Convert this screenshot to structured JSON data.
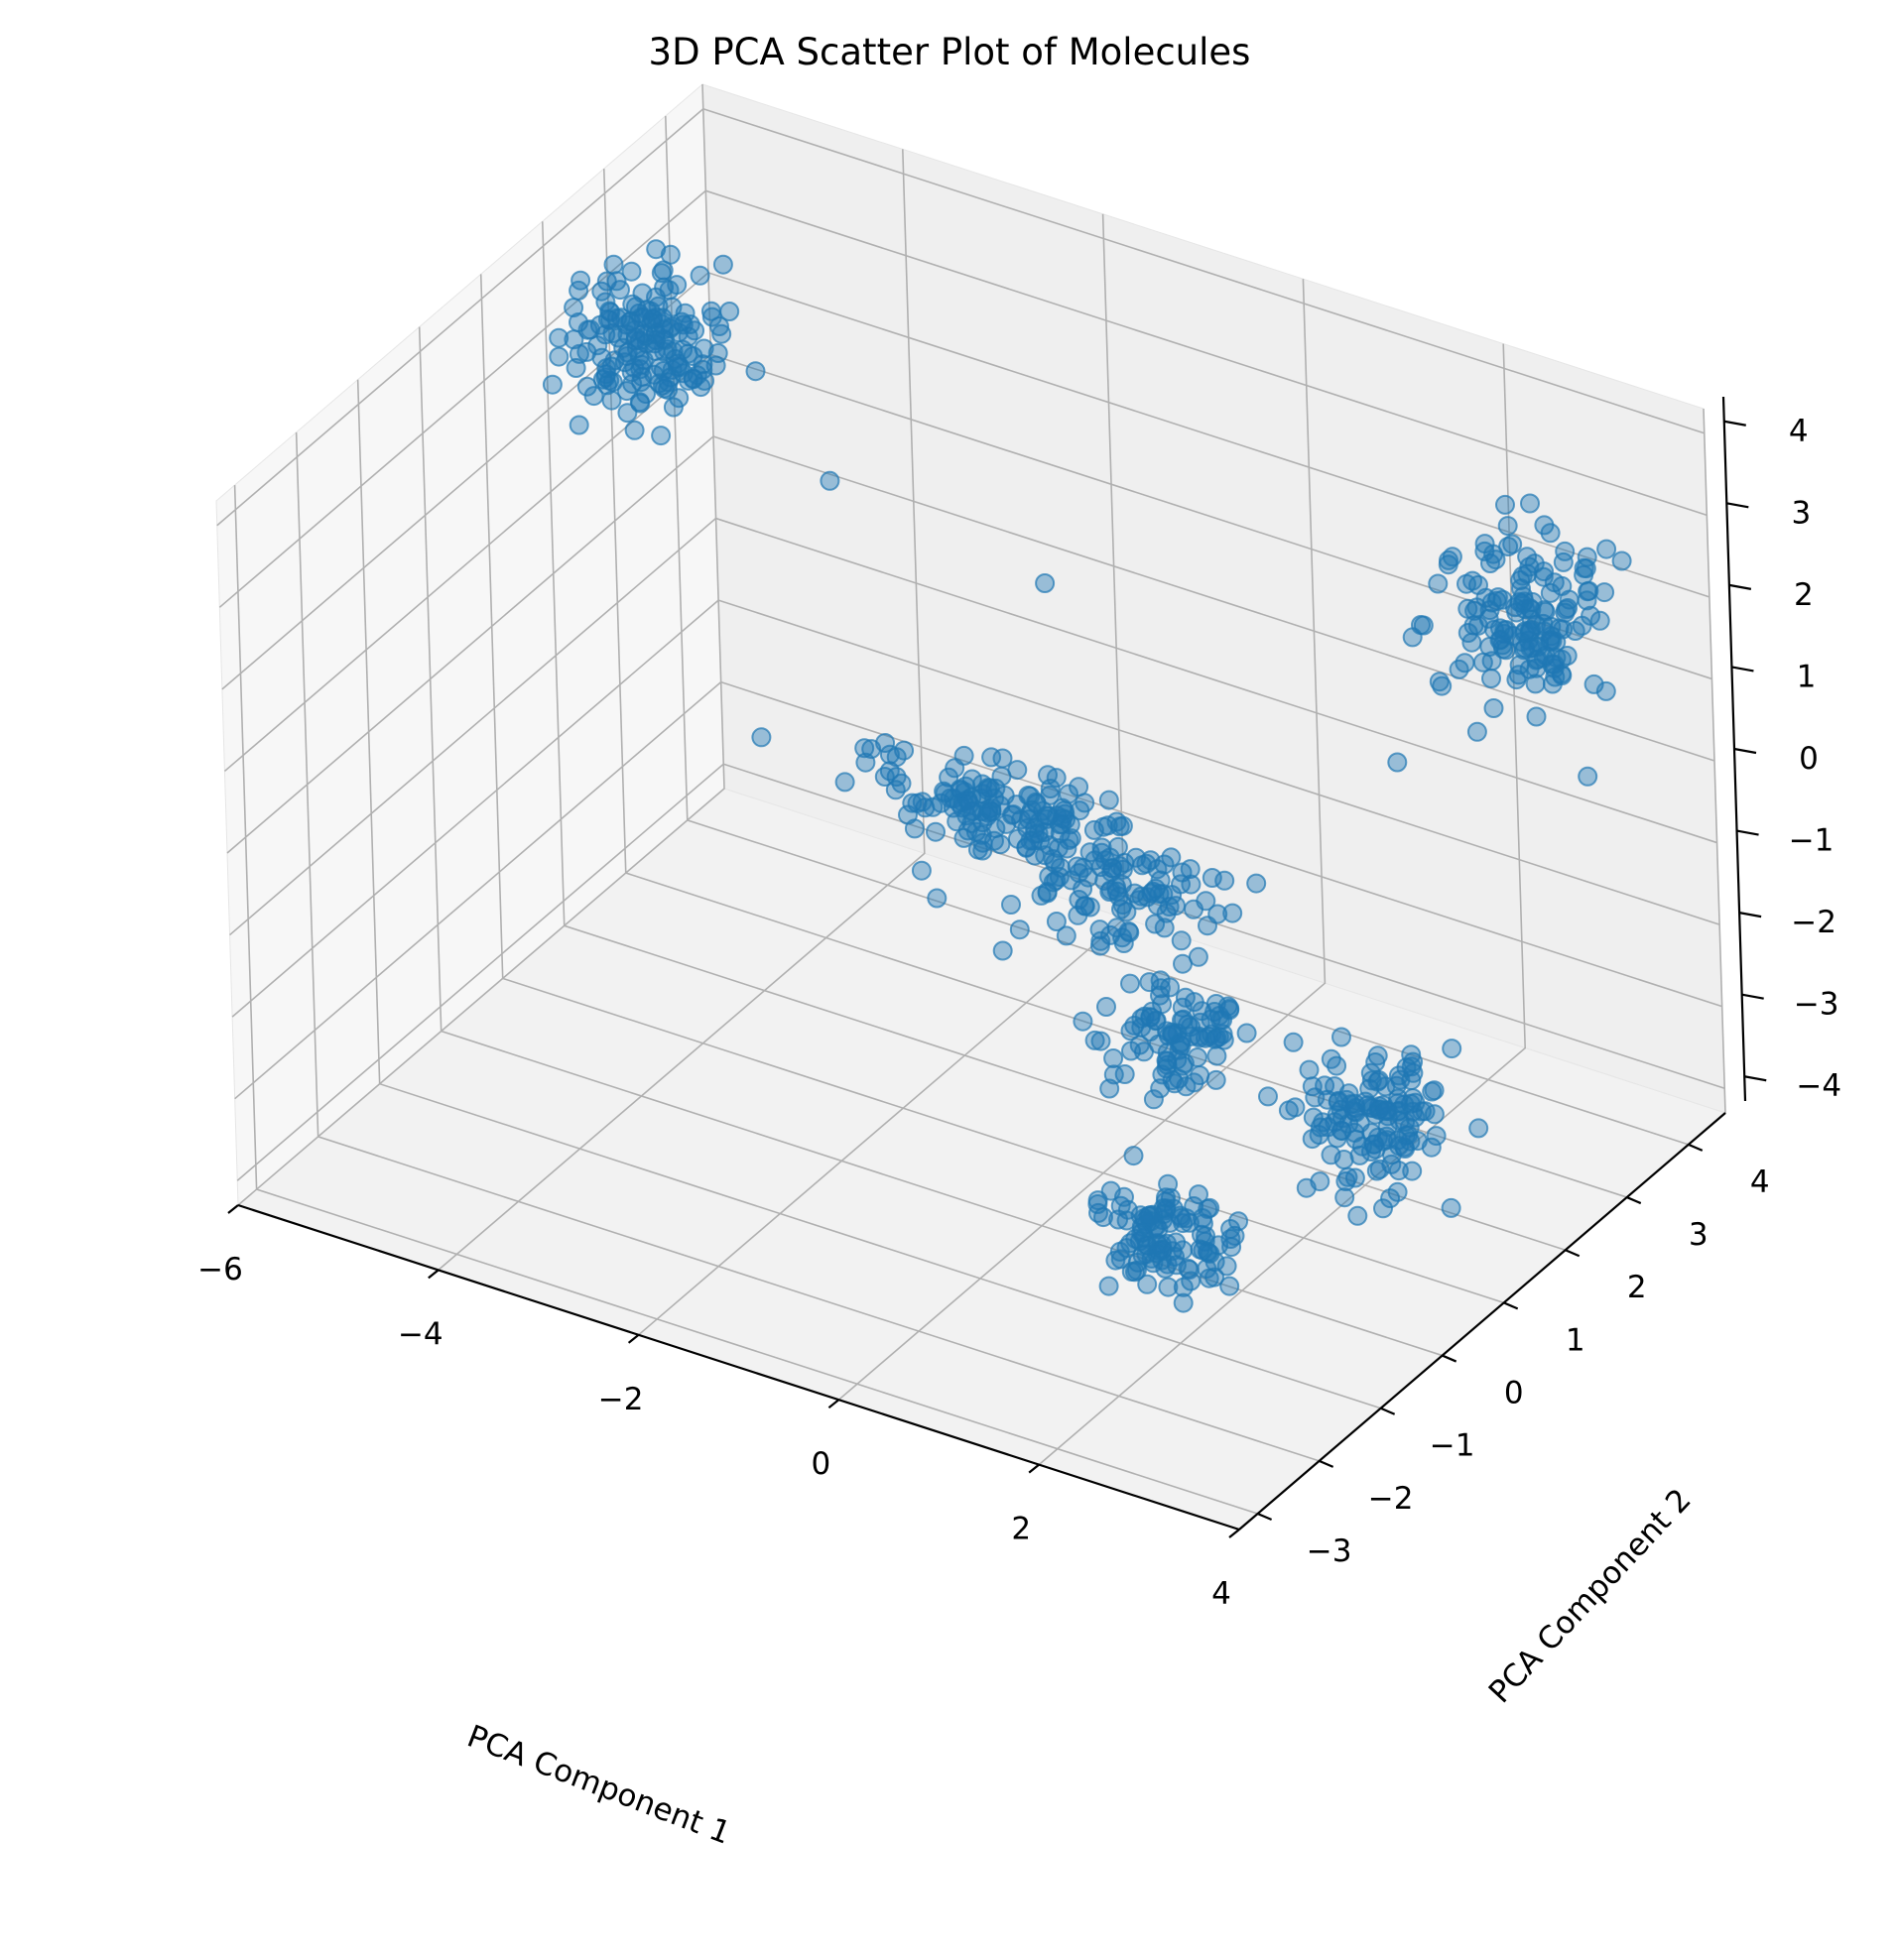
{
  "chart_data": {
    "type": "scatter",
    "title": "3D PCA Scatter Plot of Molecules",
    "xlabel": "PCA Component 1",
    "ylabel": "PCA Component 2",
    "zlabel": "",
    "xlim": [
      -6,
      4
    ],
    "ylim": [
      -3.3,
      4.6
    ],
    "zlim": [
      -4.3,
      4.3
    ],
    "xticks": [
      "−6",
      "−4",
      "−2",
      "0",
      "2",
      "4"
    ],
    "yticks": [
      "−3",
      "−2",
      "−1",
      "0",
      "1",
      "2",
      "3",
      "4"
    ],
    "zticks": [
      "−4",
      "−3",
      "−2",
      "−1",
      "0",
      "1",
      "2",
      "3",
      "4"
    ],
    "grid": true,
    "marker_color": "#1f77b4",
    "clusters": [
      {
        "center": [
          -5.0,
          2.0,
          3.2
        ],
        "spread": [
          0.35,
          0.35,
          0.35
        ],
        "count": 160
      },
      {
        "center": [
          -2.5,
          3.3,
          -2.3
        ],
        "spread": [
          0.6,
          0.25,
          0.2
        ],
        "count": 130
      },
      {
        "center": [
          -1.2,
          3.1,
          -2.55
        ],
        "spread": [
          0.55,
          0.3,
          0.25
        ],
        "count": 110
      },
      {
        "center": [
          0.3,
          1.8,
          -3.0
        ],
        "spread": [
          0.3,
          0.3,
          0.3
        ],
        "count": 90
      },
      {
        "center": [
          1.6,
          -0.6,
          -3.5
        ],
        "spread": [
          0.3,
          0.3,
          0.3
        ],
        "count": 110
      },
      {
        "center": [
          2.4,
          1.6,
          -3.1
        ],
        "spread": [
          0.3,
          0.3,
          0.35
        ],
        "count": 130
      },
      {
        "center": [
          2.5,
          4.0,
          1.5
        ],
        "spread": [
          0.35,
          0.3,
          0.45
        ],
        "count": 150
      }
    ],
    "outliers": [
      [
        -3.5,
        2.5,
        1.8
      ],
      [
        -2.0,
        3.5,
        0.5
      ],
      [
        1.5,
        3.5,
        -0.3
      ]
    ]
  }
}
